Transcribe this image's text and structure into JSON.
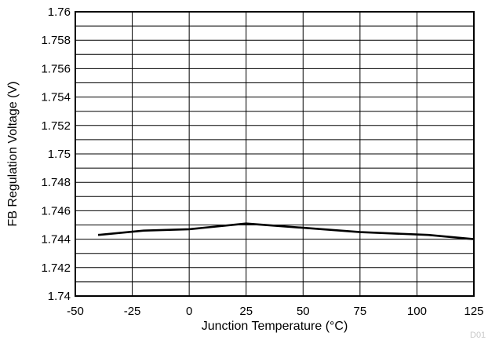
{
  "chart_data": {
    "type": "line",
    "title": "",
    "xlabel": "Junction Temperature (°C)",
    "ylabel": "FB Regulation Voltage (V)",
    "xlim": [
      -50,
      125
    ],
    "ylim": [
      1.74,
      1.76
    ],
    "x_ticks": [
      "-50",
      "-25",
      "0",
      "25",
      "50",
      "75",
      "100",
      "125"
    ],
    "x_tick_values": [
      -50,
      -25,
      0,
      25,
      50,
      75,
      100,
      125
    ],
    "y_ticks": [
      "1.74",
      "1.742",
      "1.744",
      "1.746",
      "1.748",
      "1.75",
      "1.752",
      "1.754",
      "1.756",
      "1.758",
      "1.76"
    ],
    "y_tick_values": [
      1.74,
      1.742,
      1.744,
      1.746,
      1.748,
      1.75,
      1.752,
      1.754,
      1.756,
      1.758,
      1.76
    ],
    "grid": true,
    "legend": "none",
    "series": [
      {
        "x": [
          -40,
          -20,
          0,
          25,
          50,
          75,
          105,
          125
        ],
        "y": [
          1.7443,
          1.7446,
          1.7447,
          1.7451,
          1.7448,
          1.7445,
          1.7443,
          1.744
        ],
        "color": "#000000"
      }
    ],
    "footnote": "D01"
  }
}
